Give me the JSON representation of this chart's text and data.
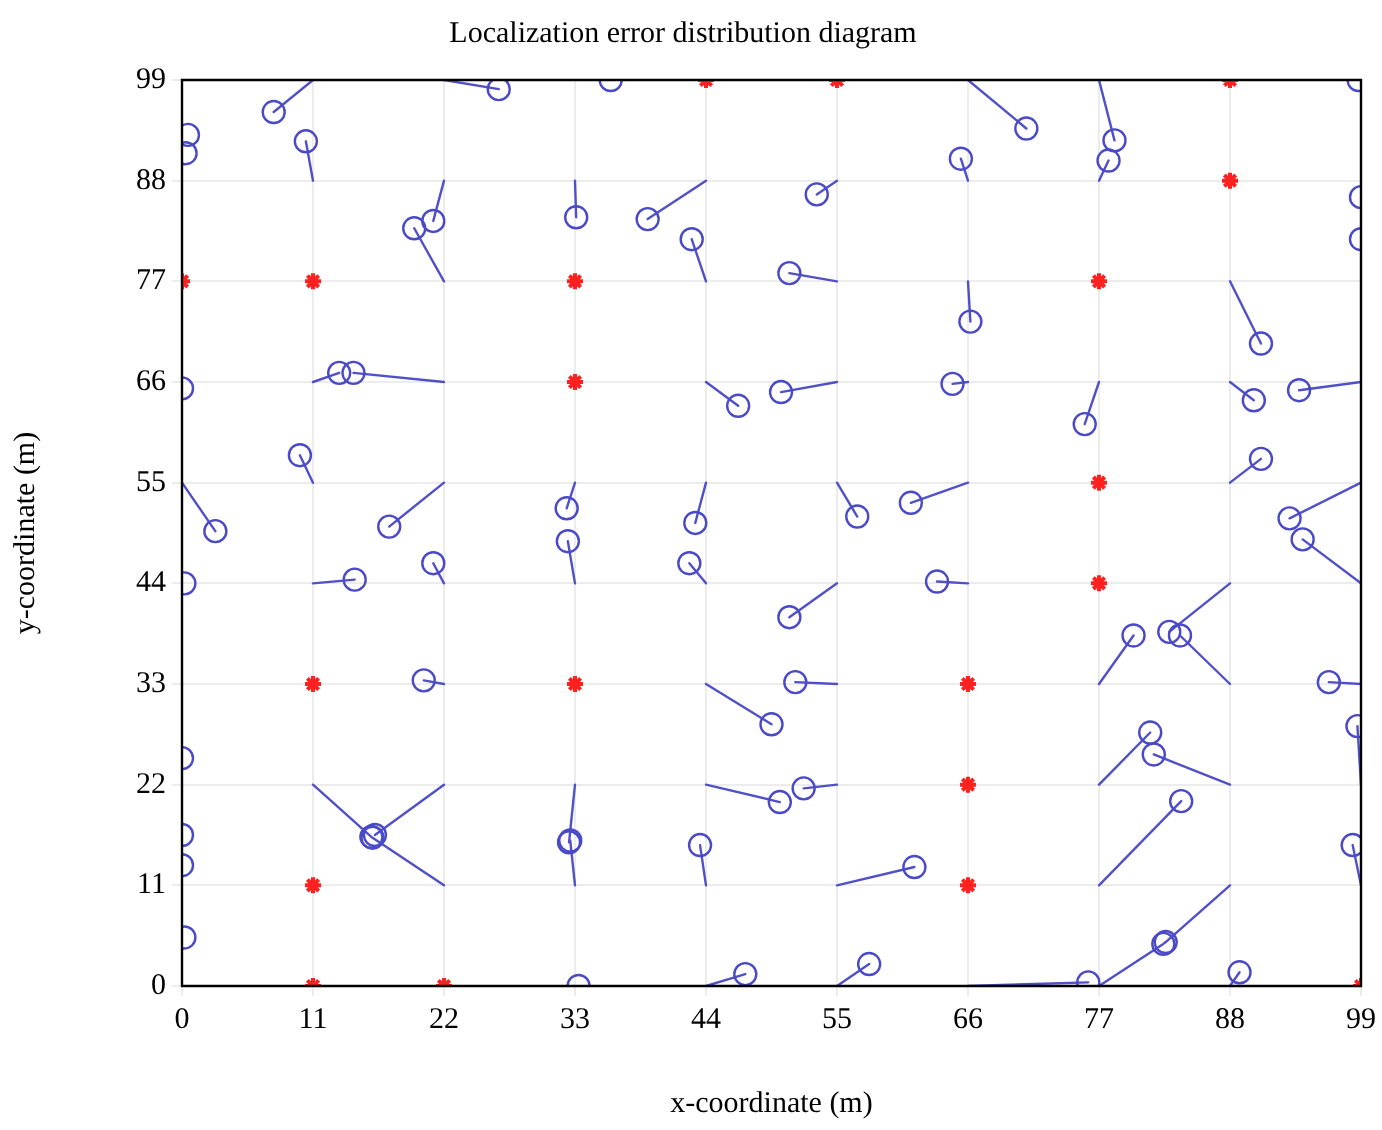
{
  "chart_data": {
    "type": "scatter",
    "title": "Localization error distribution diagram",
    "xlabel": "x-coordinate (m)",
    "ylabel": "y-coordinate (m)",
    "xlim": [
      0,
      99
    ],
    "ylim": [
      0,
      99
    ],
    "xticks": [
      0,
      11,
      22,
      33,
      44,
      55,
      66,
      77,
      88,
      99
    ],
    "yticks": [
      0,
      11,
      22,
      33,
      44,
      55,
      66,
      77,
      88,
      99
    ],
    "grid": true,
    "series": [
      {
        "type": "line",
        "color": "#5050c8",
        "marker": "none",
        "x": [
          11,
          7.7
        ],
        "values": [
          99,
          95.5
        ]
      },
      {
        "type": "line",
        "color": "#5050c8",
        "marker": "none",
        "x": [
          22,
          26.6
        ],
        "values": [
          99,
          98
        ]
      },
      {
        "type": "line",
        "color": "#5050c8",
        "marker": "none",
        "x": [
          66,
          70.9
        ],
        "values": [
          99,
          93.7
        ]
      },
      {
        "type": "line",
        "color": "#5050c8",
        "marker": "none",
        "x": [
          77,
          78.3
        ],
        "values": [
          99,
          92.4
        ]
      },
      {
        "type": "line",
        "color": "#5050c8",
        "marker": "none",
        "x": [
          11,
          10.4
        ],
        "values": [
          88,
          92.3
        ]
      },
      {
        "type": "line",
        "color": "#5050c8",
        "marker": "none",
        "x": [
          22,
          21.1
        ],
        "values": [
          88,
          83.6
        ]
      },
      {
        "type": "line",
        "color": "#5050c8",
        "marker": "none",
        "x": [
          33,
          33.1
        ],
        "values": [
          88,
          84
        ]
      },
      {
        "type": "line",
        "color": "#5050c8",
        "marker": "none",
        "x": [
          44,
          39.1
        ],
        "values": [
          88,
          83.8
        ]
      },
      {
        "type": "line",
        "color": "#5050c8",
        "marker": "none",
        "x": [
          55,
          53.3
        ],
        "values": [
          88,
          86.5
        ]
      },
      {
        "type": "line",
        "color": "#5050c8",
        "marker": "none",
        "x": [
          66,
          65.4
        ],
        "values": [
          88,
          90.4
        ]
      },
      {
        "type": "line",
        "color": "#5050c8",
        "marker": "none",
        "x": [
          77,
          77.8
        ],
        "values": [
          88,
          90.2
        ]
      },
      {
        "type": "line",
        "color": "#5050c8",
        "marker": "none",
        "x": [
          22,
          19.5
        ],
        "values": [
          77,
          82.8
        ]
      },
      {
        "type": "line",
        "color": "#5050c8",
        "marker": "none",
        "x": [
          44,
          42.8
        ],
        "values": [
          77,
          81.6
        ]
      },
      {
        "type": "line",
        "color": "#5050c8",
        "marker": "none",
        "x": [
          55,
          51
        ],
        "values": [
          77,
          77.9
        ]
      },
      {
        "type": "line",
        "color": "#5050c8",
        "marker": "none",
        "x": [
          66,
          66.2
        ],
        "values": [
          77,
          72.6
        ]
      },
      {
        "type": "line",
        "color": "#5050c8",
        "marker": "none",
        "x": [
          88,
          90.6
        ],
        "values": [
          77,
          70.2
        ]
      },
      {
        "type": "line",
        "color": "#5050c8",
        "marker": "none",
        "x": [
          11,
          13.2
        ],
        "values": [
          66,
          67
        ]
      },
      {
        "type": "line",
        "color": "#5050c8",
        "marker": "none",
        "x": [
          22,
          14.4
        ],
        "values": [
          66,
          67
        ]
      },
      {
        "type": "line",
        "color": "#5050c8",
        "marker": "none",
        "x": [
          44,
          46.7
        ],
        "values": [
          66,
          63.4
        ]
      },
      {
        "type": "line",
        "color": "#5050c8",
        "marker": "none",
        "x": [
          55,
          50.3
        ],
        "values": [
          66,
          64.9
        ]
      },
      {
        "type": "line",
        "color": "#5050c8",
        "marker": "none",
        "x": [
          66,
          64.7
        ],
        "values": [
          66,
          65.8
        ]
      },
      {
        "type": "line",
        "color": "#5050c8",
        "marker": "none",
        "x": [
          77,
          75.8
        ],
        "values": [
          66,
          61.4
        ]
      },
      {
        "type": "line",
        "color": "#5050c8",
        "marker": "none",
        "x": [
          88,
          90
        ],
        "values": [
          66,
          64
        ]
      },
      {
        "type": "line",
        "color": "#5050c8",
        "marker": "none",
        "x": [
          99,
          93.8
        ],
        "values": [
          66,
          65.1
        ]
      },
      {
        "type": "line",
        "color": "#5050c8",
        "marker": "none",
        "x": [
          0,
          2.8
        ],
        "values": [
          55,
          49.7
        ]
      },
      {
        "type": "line",
        "color": "#5050c8",
        "marker": "none",
        "x": [
          11,
          9.9
        ],
        "values": [
          55,
          58
        ]
      },
      {
        "type": "line",
        "color": "#5050c8",
        "marker": "none",
        "x": [
          22,
          17.4
        ],
        "values": [
          55,
          50.2
        ]
      },
      {
        "type": "line",
        "color": "#5050c8",
        "marker": "none",
        "x": [
          33,
          32.3
        ],
        "values": [
          55,
          52.2
        ]
      },
      {
        "type": "line",
        "color": "#5050c8",
        "marker": "none",
        "x": [
          44,
          43.1
        ],
        "values": [
          55,
          50.6
        ]
      },
      {
        "type": "line",
        "color": "#5050c8",
        "marker": "none",
        "x": [
          55,
          56.7
        ],
        "values": [
          55,
          51.3
        ]
      },
      {
        "type": "line",
        "color": "#5050c8",
        "marker": "none",
        "x": [
          66,
          61.2
        ],
        "values": [
          55,
          52.8
        ]
      },
      {
        "type": "line",
        "color": "#5050c8",
        "marker": "none",
        "x": [
          88,
          90.6
        ],
        "values": [
          55,
          57.6
        ]
      },
      {
        "type": "line",
        "color": "#5050c8",
        "marker": "none",
        "x": [
          99,
          93
        ],
        "values": [
          55,
          51.1
        ]
      },
      {
        "type": "line",
        "color": "#5050c8",
        "marker": "none",
        "x": [
          11,
          14.5
        ],
        "values": [
          44,
          44.4
        ]
      },
      {
        "type": "line",
        "color": "#5050c8",
        "marker": "none",
        "x": [
          22,
          21.1
        ],
        "values": [
          44,
          46.2
        ]
      },
      {
        "type": "line",
        "color": "#5050c8",
        "marker": "none",
        "x": [
          33,
          32.4
        ],
        "values": [
          44,
          48.6
        ]
      },
      {
        "type": "line",
        "color": "#5050c8",
        "marker": "none",
        "x": [
          44,
          42.6
        ],
        "values": [
          44,
          46.2
        ]
      },
      {
        "type": "line",
        "color": "#5050c8",
        "marker": "none",
        "x": [
          55,
          51
        ],
        "values": [
          44,
          40.3
        ]
      },
      {
        "type": "line",
        "color": "#5050c8",
        "marker": "none",
        "x": [
          66,
          63.4
        ],
        "values": [
          44,
          44.2
        ]
      },
      {
        "type": "line",
        "color": "#5050c8",
        "marker": "none",
        "x": [
          88,
          82.9
        ],
        "values": [
          44,
          38.7
        ]
      },
      {
        "type": "line",
        "color": "#5050c8",
        "marker": "none",
        "x": [
          99,
          94.1
        ],
        "values": [
          44,
          48.8
        ]
      },
      {
        "type": "line",
        "color": "#5050c8",
        "marker": "none",
        "x": [
          22,
          20.3
        ],
        "values": [
          33,
          33.4
        ]
      },
      {
        "type": "line",
        "color": "#5050c8",
        "marker": "none",
        "x": [
          44,
          49.5
        ],
        "values": [
          33,
          28.6
        ]
      },
      {
        "type": "line",
        "color": "#5050c8",
        "marker": "none",
        "x": [
          55,
          51.5
        ],
        "values": [
          33,
          33.2
        ]
      },
      {
        "type": "line",
        "color": "#5050c8",
        "marker": "none",
        "x": [
          77,
          79.9
        ],
        "values": [
          33,
          38.3
        ]
      },
      {
        "type": "line",
        "color": "#5050c8",
        "marker": "none",
        "x": [
          88,
          83.8
        ],
        "values": [
          33,
          38.3
        ]
      },
      {
        "type": "line",
        "color": "#5050c8",
        "marker": "none",
        "x": [
          99,
          96.3
        ],
        "values": [
          33,
          33.2
        ]
      },
      {
        "type": "line",
        "color": "#5050c8",
        "marker": "none",
        "x": [
          11,
          15.9,
          16,
          22
        ],
        "values": [
          22,
          16.3,
          16.2,
          11
        ]
      },
      {
        "type": "line",
        "color": "#5050c8",
        "marker": "none",
        "x": [
          22,
          16.2
        ],
        "values": [
          22,
          16.5
        ]
      },
      {
        "type": "line",
        "color": "#5050c8",
        "marker": "none",
        "x": [
          33,
          32.5,
          32.6,
          33
        ],
        "values": [
          22,
          15.7,
          15.9,
          11
        ]
      },
      {
        "type": "line",
        "color": "#5050c8",
        "marker": "none",
        "x": [
          44,
          50.2
        ],
        "values": [
          22,
          20.1
        ]
      },
      {
        "type": "line",
        "color": "#5050c8",
        "marker": "none",
        "x": [
          55,
          52.2
        ],
        "values": [
          22,
          21.6
        ]
      },
      {
        "type": "line",
        "color": "#5050c8",
        "marker": "none",
        "x": [
          77,
          81.3
        ],
        "values": [
          22,
          27.7
        ]
      },
      {
        "type": "line",
        "color": "#5050c8",
        "marker": "none",
        "x": [
          88,
          81.6
        ],
        "values": [
          22,
          25.3
        ]
      },
      {
        "type": "line",
        "color": "#5050c8",
        "marker": "none",
        "x": [
          99,
          98.7
        ],
        "values": [
          22,
          28.4
        ]
      },
      {
        "type": "line",
        "color": "#5050c8",
        "marker": "none",
        "x": [
          44,
          43.5
        ],
        "values": [
          11,
          15.4
        ]
      },
      {
        "type": "line",
        "color": "#5050c8",
        "marker": "none",
        "x": [
          55,
          61.5
        ],
        "values": [
          11,
          13
        ]
      },
      {
        "type": "line",
        "color": "#5050c8",
        "marker": "none",
        "x": [
          77,
          83.9
        ],
        "values": [
          11,
          20.2
        ]
      },
      {
        "type": "line",
        "color": "#5050c8",
        "marker": "none",
        "x": [
          99,
          98.3
        ],
        "values": [
          11,
          15.4
        ]
      },
      {
        "type": "line",
        "color": "#5050c8",
        "marker": "none",
        "x": [
          44,
          47.3
        ],
        "values": [
          0,
          1.3
        ]
      },
      {
        "type": "line",
        "color": "#5050c8",
        "marker": "none",
        "x": [
          55,
          57.7
        ],
        "values": [
          0,
          2.4
        ]
      },
      {
        "type": "line",
        "color": "#5050c8",
        "marker": "none",
        "x": [
          66,
          76.1
        ],
        "values": [
          0,
          0.4
        ]
      },
      {
        "type": "line",
        "color": "#5050c8",
        "marker": "none",
        "x": [
          77,
          82.4,
          82.6,
          88
        ],
        "values": [
          0,
          4.6,
          4.8,
          11
        ]
      },
      {
        "type": "line",
        "color": "#5050c8",
        "marker": "none",
        "x": [
          88,
          88.8
        ],
        "values": [
          0,
          1.5
        ]
      },
      {
        "type": "scatter",
        "color": "#4a4ac8",
        "marker": "circle",
        "x": [
          0.5,
          0.3,
          7.7,
          26.6,
          36,
          70.9,
          78.3,
          98.8,
          10.4,
          21.1,
          33.1,
          39.1,
          53.3,
          65.4,
          77.8,
          99,
          19.5,
          42.8,
          51,
          66.2,
          90.6,
          99,
          0,
          13.2,
          14.4,
          46.7,
          50.3,
          64.7,
          75.8,
          90,
          93.8,
          2.8,
          9.9,
          17.4,
          32.3,
          43.1,
          56.7,
          61.2,
          90.6,
          93,
          0.2,
          14.5,
          21.1,
          32.4,
          42.6,
          51,
          63.4,
          82.9,
          94.1,
          0,
          20.3,
          49.5,
          51.5,
          79.9,
          83.8,
          96.3,
          0,
          15.9,
          16.2,
          32.5,
          50.2,
          52.2,
          81.3,
          81.6,
          98.7,
          0,
          16,
          32.6,
          43.5,
          61.5,
          83.9,
          82.6,
          98.3,
          0.2,
          33.3,
          47.3,
          57.7,
          76.1,
          82.4,
          88.8
        ],
        "values": [
          93,
          91,
          95.5,
          98,
          99,
          93.7,
          92.4,
          99,
          92.3,
          83.6,
          84,
          83.8,
          86.5,
          90.4,
          90.2,
          86.2,
          82.8,
          81.6,
          77.9,
          72.6,
          70.2,
          81.6,
          65.3,
          67,
          67,
          63.4,
          64.9,
          65.8,
          61.4,
          64,
          65.1,
          49.7,
          58,
          50.2,
          52.2,
          50.6,
          51.3,
          52.8,
          57.6,
          51.1,
          44,
          44.4,
          46.2,
          48.6,
          46.2,
          40.3,
          44.2,
          38.7,
          48.8,
          24.9,
          33.4,
          28.6,
          33.2,
          38.3,
          38.3,
          33.2,
          16.5,
          16.3,
          16.5,
          15.7,
          20.1,
          21.6,
          27.7,
          25.3,
          28.4,
          13.2,
          16.2,
          15.9,
          15.4,
          13,
          20.2,
          4.8,
          15.4,
          5.3,
          0,
          1.3,
          2.4,
          0.4,
          4.6,
          1.5
        ]
      },
      {
        "type": "scatter",
        "color": "#ff2020",
        "marker": "cross",
        "x": [
          44,
          55,
          88,
          88,
          0,
          11,
          33,
          77,
          33,
          77,
          77,
          11,
          33,
          66,
          66,
          11,
          66,
          11,
          22,
          99
        ],
        "values": [
          99,
          99,
          99,
          88,
          77,
          77,
          77,
          77,
          66,
          55,
          44,
          33,
          33,
          33,
          22,
          11,
          11,
          0,
          0,
          0
        ]
      }
    ]
  }
}
